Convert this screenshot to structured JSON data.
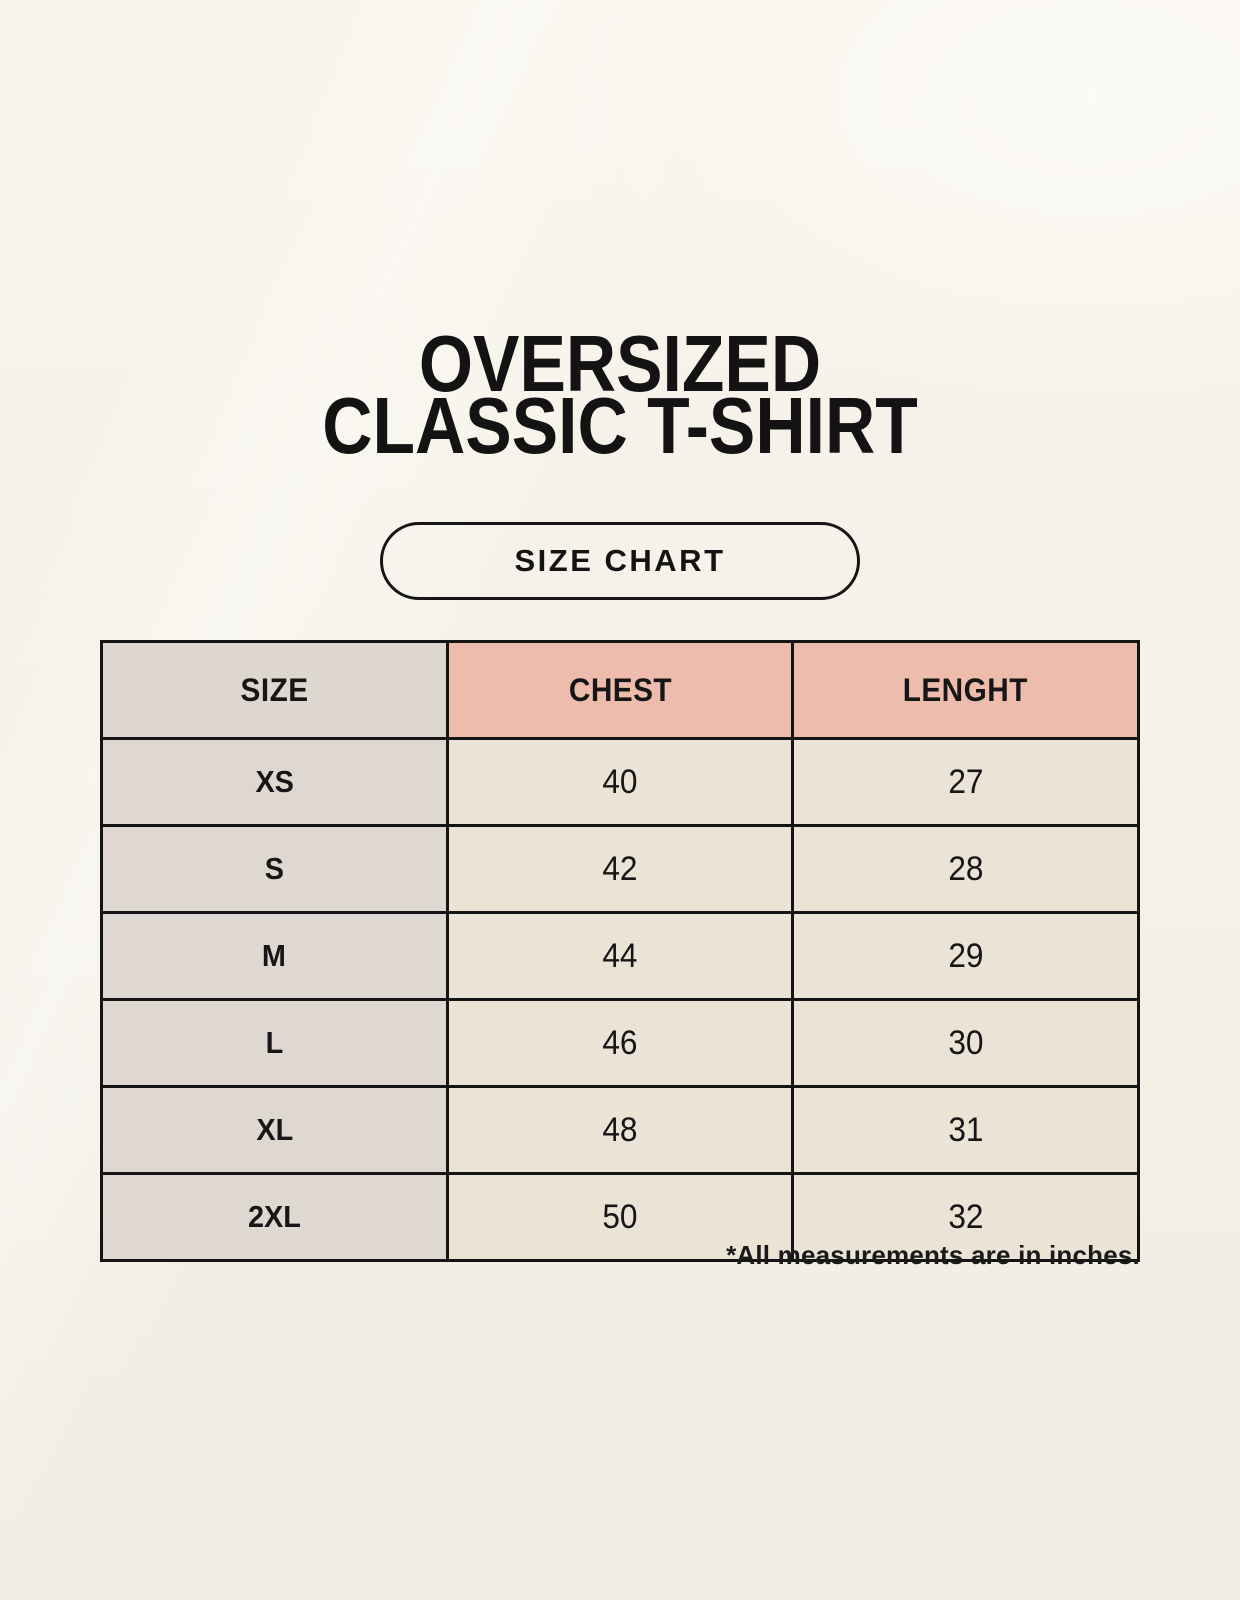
{
  "page": {
    "title": [
      "OVERSIZED",
      "CLASSIC T-SHIRT"
    ],
    "button_label": "SIZE CHART",
    "footnote": "*All measurements are in inches."
  },
  "chart_data": {
    "type": "table",
    "title": "OVERSIZED CLASSIC T-SHIRT — SIZE CHART",
    "columns": [
      "SIZE",
      "CHEST",
      "LENGHT"
    ],
    "rows": [
      [
        "XS",
        "40",
        "27"
      ],
      [
        "S",
        "42",
        "28"
      ],
      [
        "M",
        "44",
        "29"
      ],
      [
        "L",
        "46",
        "30"
      ],
      [
        "XL",
        "48",
        "31"
      ],
      [
        "2XL",
        "50",
        "32"
      ]
    ],
    "units_note": "*All measurements are in inches."
  },
  "colors": {
    "background": "#f5f1e8",
    "header_size_bg": "#ddd7d0",
    "header_measurement_bg": "#edbcac",
    "size_column_bg": "#ded8d1",
    "value_cell_bg": "#eae3d6",
    "border": "#141414",
    "text": "#161616"
  }
}
